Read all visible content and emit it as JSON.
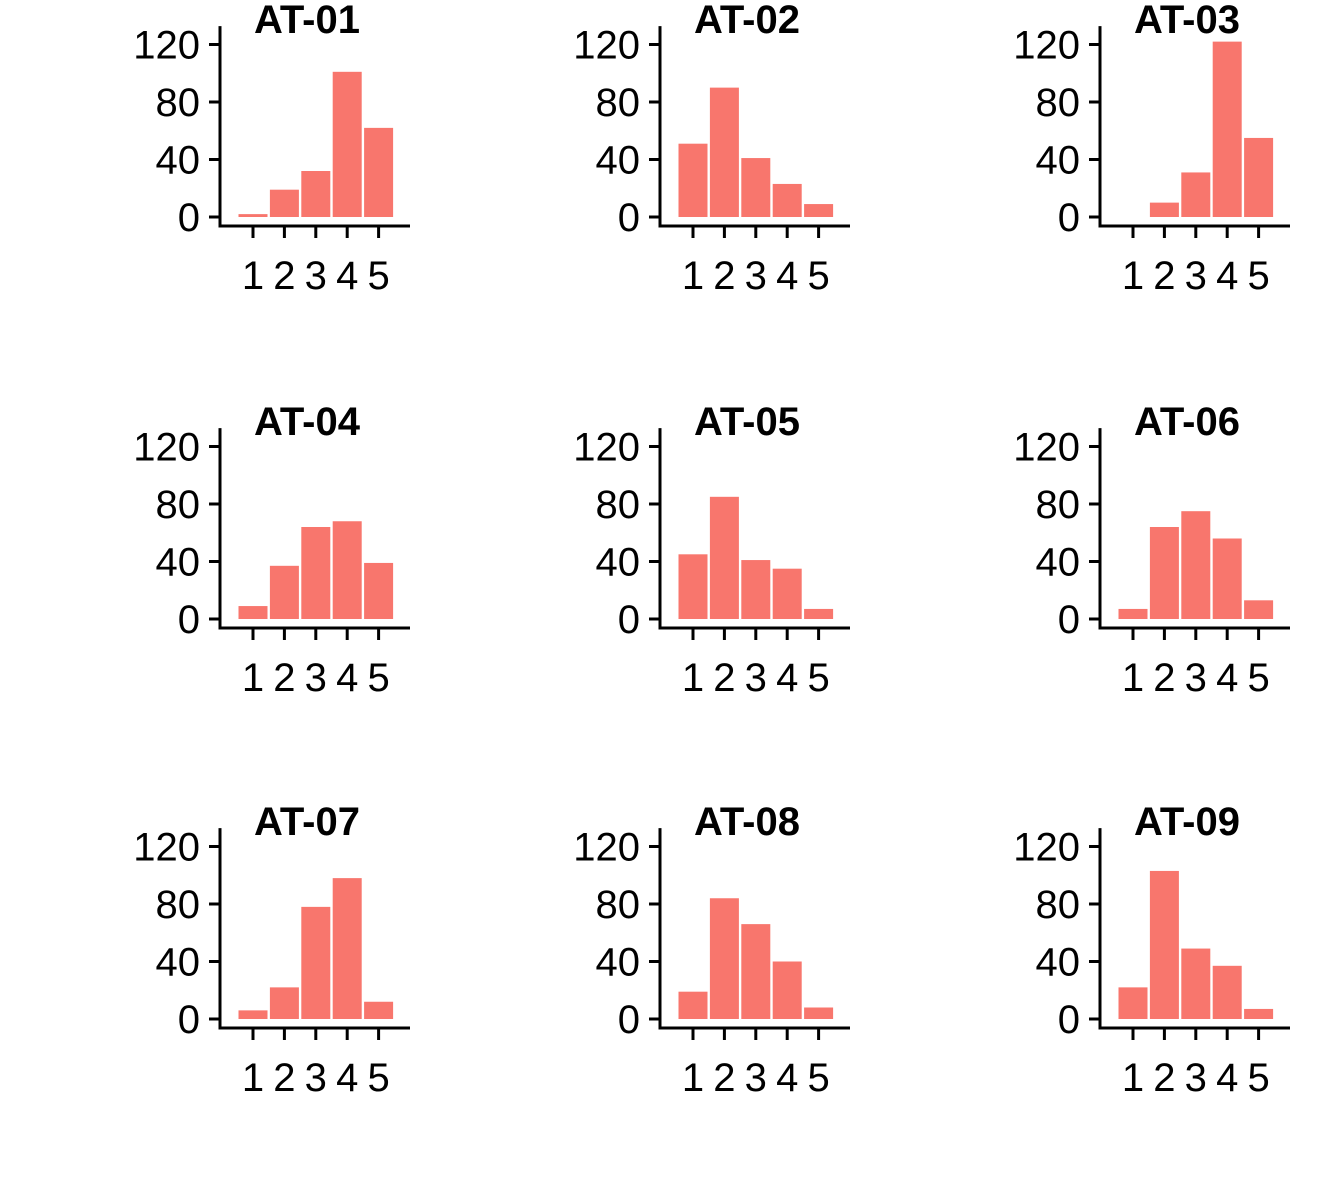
{
  "bar_color": "#F8766D",
  "axis_color": "#000000",
  "chart_data": [
    {
      "type": "bar",
      "title": "AT-01",
      "categories": [
        "1",
        "2",
        "3",
        "4",
        "5"
      ],
      "values": [
        2,
        19,
        32,
        101,
        62
      ],
      "ylim": [
        0,
        130
      ],
      "yticks": [
        "0",
        "40",
        "80",
        "120"
      ],
      "grid": false
    },
    {
      "type": "bar",
      "title": "AT-02",
      "categories": [
        "1",
        "2",
        "3",
        "4",
        "5"
      ],
      "values": [
        51,
        90,
        41,
        23,
        9
      ],
      "ylim": [
        0,
        130
      ],
      "yticks": [
        "0",
        "40",
        "80",
        "120"
      ],
      "grid": false
    },
    {
      "type": "bar",
      "title": "AT-03",
      "categories": [
        "1",
        "2",
        "3",
        "4",
        "5"
      ],
      "values": [
        0,
        10,
        31,
        122,
        55
      ],
      "ylim": [
        0,
        130
      ],
      "yticks": [
        "0",
        "40",
        "80",
        "120"
      ],
      "grid": false
    },
    {
      "type": "bar",
      "title": "AT-04",
      "categories": [
        "1",
        "2",
        "3",
        "4",
        "5"
      ],
      "values": [
        9,
        37,
        64,
        68,
        39
      ],
      "ylim": [
        0,
        130
      ],
      "yticks": [
        "0",
        "40",
        "80",
        "120"
      ],
      "grid": false
    },
    {
      "type": "bar",
      "title": "AT-05",
      "categories": [
        "1",
        "2",
        "3",
        "4",
        "5"
      ],
      "values": [
        45,
        85,
        41,
        35,
        7
      ],
      "ylim": [
        0,
        130
      ],
      "yticks": [
        "0",
        "40",
        "80",
        "120"
      ],
      "grid": false
    },
    {
      "type": "bar",
      "title": "AT-06",
      "categories": [
        "1",
        "2",
        "3",
        "4",
        "5"
      ],
      "values": [
        7,
        64,
        75,
        56,
        13
      ],
      "ylim": [
        0,
        130
      ],
      "yticks": [
        "0",
        "40",
        "80",
        "120"
      ],
      "grid": false
    },
    {
      "type": "bar",
      "title": "AT-07",
      "categories": [
        "1",
        "2",
        "3",
        "4",
        "5"
      ],
      "values": [
        6,
        22,
        78,
        98,
        12
      ],
      "ylim": [
        0,
        130
      ],
      "yticks": [
        "0",
        "40",
        "80",
        "120"
      ],
      "grid": false
    },
    {
      "type": "bar",
      "title": "AT-08",
      "categories": [
        "1",
        "2",
        "3",
        "4",
        "5"
      ],
      "values": [
        19,
        84,
        66,
        40,
        8
      ],
      "ylim": [
        0,
        130
      ],
      "yticks": [
        "0",
        "40",
        "80",
        "120"
      ],
      "grid": false
    },
    {
      "type": "bar",
      "title": "AT-09",
      "categories": [
        "1",
        "2",
        "3",
        "4",
        "5"
      ],
      "values": [
        22,
        103,
        49,
        37,
        7
      ],
      "ylim": [
        0,
        130
      ],
      "yticks": [
        "0",
        "40",
        "80",
        "120"
      ],
      "grid": false
    }
  ]
}
